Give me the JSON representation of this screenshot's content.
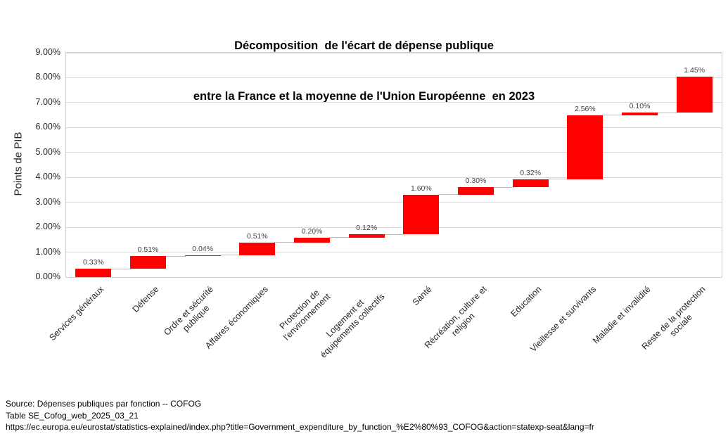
{
  "title": {
    "line1": "Décomposition  de l'écart de dépense publique",
    "line2": "entre la France et la moyenne de l'Union Européenne  en 2023"
  },
  "chart_data": {
    "type": "bar",
    "subtype": "waterfall",
    "title": "Décomposition de l'écart de dépense publique entre la France et la moyenne de l'Union Européenne en 2023",
    "xlabel": "",
    "ylabel": "Points de PIB",
    "categories": [
      "Services généraux",
      "Défense",
      "Ordre et sécurité\npublique",
      "Affaires économiques",
      "Protection de\nl'environnement",
      "Logement et\néquipements collectifs",
      "Santé",
      "Récréation, culture et\nreligion",
      "Education",
      "Vieillesse et survivants",
      "Maladie et invalidité",
      "Reste de la protection\nsociale"
    ],
    "values": [
      0.33,
      0.51,
      0.04,
      0.51,
      0.2,
      0.12,
      1.6,
      0.3,
      0.32,
      2.56,
      0.1,
      1.45
    ],
    "value_labels": [
      "0.33%",
      "0.51%",
      "0.04%",
      "0.51%",
      "0.20%",
      "0.12%",
      "1.60%",
      "0.30%",
      "0.32%",
      "2.56%",
      "0.10%",
      "1.45%"
    ],
    "cumulative_end": [
      0.33,
      0.84,
      0.88,
      1.39,
      1.59,
      1.71,
      3.31,
      3.61,
      3.93,
      6.49,
      6.59,
      8.04
    ],
    "ylim": [
      0,
      9
    ],
    "ytick_step": 1,
    "ytick_labels": [
      "0.00%",
      "1.00%",
      "2.00%",
      "3.00%",
      "4.00%",
      "5.00%",
      "6.00%",
      "7.00%",
      "8.00%",
      "9.00%"
    ],
    "grid": true,
    "legend_position": "none",
    "bar_color": "#ff0000",
    "gridline_color": "#d9d9d9",
    "connector_color": "#bfbfbf"
  },
  "footer": {
    "source_line1": "Source: Dépenses publiques par fonction -- COFOG",
    "source_line2": "Table SE_Cofog_web_2025_03_21",
    "source_line3": "https://ec.europa.eu/eurostat/statistics-explained/index.php?title=Government_expenditure_by_function_%E2%80%93_COFOG&action=statexp-seat&lang=fr"
  }
}
